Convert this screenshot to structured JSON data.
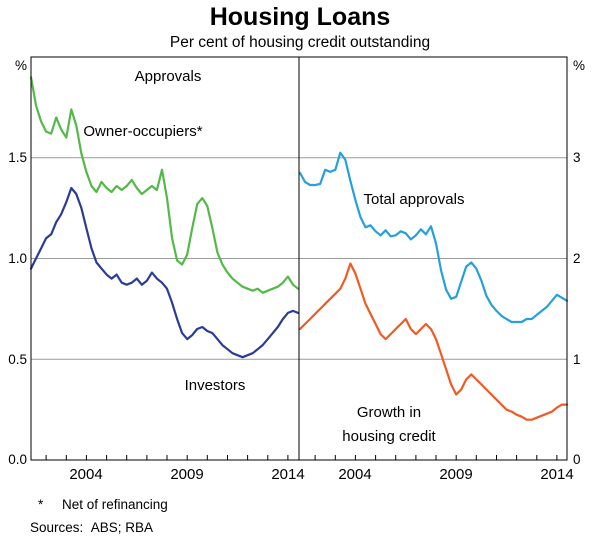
{
  "title": "Housing Loans",
  "subtitle": "Per cent of housing credit outstanding",
  "footnotes": {
    "marker": "*",
    "note": "Net of refinancing",
    "sources": "Sources:  ABS; RBA"
  },
  "chart_data": {
    "type": "line",
    "title": "Housing Loans",
    "subtitle": "Per cent of housing credit outstanding",
    "x_range": [
      2001.25,
      2014.5
    ],
    "x_ticks": [
      2004,
      2009,
      2014
    ],
    "x_tick_labels": [
      "2004",
      "2009",
      "2014"
    ],
    "y_axis_left": {
      "unit": "%",
      "min": 0,
      "max": 2,
      "tick_step": 0.5,
      "applies_to": "left panel (Approvals)"
    },
    "y_axis_right": {
      "unit": "%",
      "min": 0,
      "max": 4,
      "tick_step": 1,
      "applies_to": "right panel"
    },
    "gridlines_left": [
      0.5,
      1.0,
      1.5
    ],
    "left_axis_labels": [
      "%",
      "1.5",
      "1.0",
      "0.5",
      "0.0"
    ],
    "right_axis_labels": [
      "%",
      "3",
      "2",
      "1",
      "0"
    ],
    "x": [
      2001.25,
      2001.5,
      2001.75,
      2002,
      2002.25,
      2002.5,
      2002.75,
      2003,
      2003.25,
      2003.5,
      2003.75,
      2004,
      2004.25,
      2004.5,
      2004.75,
      2005,
      2005.25,
      2005.5,
      2005.75,
      2006,
      2006.25,
      2006.5,
      2006.75,
      2007,
      2007.25,
      2007.5,
      2007.75,
      2008,
      2008.25,
      2008.5,
      2008.75,
      2009,
      2009.25,
      2009.5,
      2009.75,
      2010,
      2010.25,
      2010.5,
      2010.75,
      2011,
      2011.25,
      2011.5,
      2011.75,
      2012,
      2012.25,
      2012.5,
      2012.75,
      2013,
      2013.25,
      2013.5,
      2013.75,
      2014,
      2014.25,
      2014.5
    ],
    "series": [
      {
        "name": "Owner-occupiers*",
        "panel": "left",
        "color": "#54b948",
        "values": [
          1.9,
          1.76,
          1.68,
          1.63,
          1.62,
          1.7,
          1.64,
          1.6,
          1.74,
          1.66,
          1.52,
          1.43,
          1.36,
          1.33,
          1.38,
          1.35,
          1.33,
          1.36,
          1.34,
          1.36,
          1.39,
          1.35,
          1.32,
          1.34,
          1.36,
          1.34,
          1.44,
          1.3,
          1.1,
          0.99,
          0.97,
          1.02,
          1.15,
          1.27,
          1.3,
          1.26,
          1.15,
          1.03,
          0.97,
          0.93,
          0.9,
          0.88,
          0.86,
          0.85,
          0.84,
          0.85,
          0.83,
          0.84,
          0.85,
          0.86,
          0.88,
          0.91,
          0.87,
          0.85
        ]
      },
      {
        "name": "Investors",
        "panel": "left",
        "color": "#2b3c96",
        "values": [
          0.95,
          1.0,
          1.05,
          1.1,
          1.12,
          1.18,
          1.22,
          1.28,
          1.35,
          1.32,
          1.25,
          1.15,
          1.05,
          0.98,
          0.95,
          0.92,
          0.9,
          0.92,
          0.88,
          0.87,
          0.88,
          0.9,
          0.87,
          0.89,
          0.93,
          0.9,
          0.88,
          0.85,
          0.78,
          0.7,
          0.63,
          0.6,
          0.62,
          0.65,
          0.66,
          0.64,
          0.63,
          0.6,
          0.57,
          0.55,
          0.53,
          0.52,
          0.51,
          0.52,
          0.53,
          0.55,
          0.57,
          0.6,
          0.63,
          0.66,
          0.7,
          0.73,
          0.74,
          0.73
        ]
      },
      {
        "name": "Total approvals",
        "panel": "right",
        "color": "#25a0dc",
        "values": [
          2.85,
          2.76,
          2.73,
          2.73,
          2.74,
          2.88,
          2.86,
          2.88,
          3.05,
          2.98,
          2.77,
          2.58,
          2.41,
          2.31,
          2.33,
          2.27,
          2.23,
          2.28,
          2.22,
          2.23,
          2.27,
          2.25,
          2.19,
          2.23,
          2.29,
          2.24,
          2.32,
          2.15,
          1.88,
          1.69,
          1.6,
          1.62,
          1.77,
          1.92,
          1.96,
          1.9,
          1.78,
          1.63,
          1.54,
          1.48,
          1.43,
          1.4,
          1.37,
          1.37,
          1.37,
          1.4,
          1.4,
          1.44,
          1.48,
          1.52,
          1.58,
          1.64,
          1.61,
          1.58
        ]
      },
      {
        "name": "Growth in housing credit",
        "panel": "right",
        "color": "#f15a22",
        "values": [
          1.3,
          1.35,
          1.4,
          1.45,
          1.5,
          1.55,
          1.6,
          1.65,
          1.7,
          1.8,
          1.95,
          1.85,
          1.7,
          1.55,
          1.45,
          1.35,
          1.25,
          1.2,
          1.25,
          1.3,
          1.35,
          1.4,
          1.3,
          1.25,
          1.3,
          1.35,
          1.3,
          1.2,
          1.05,
          0.9,
          0.75,
          0.65,
          0.7,
          0.8,
          0.85,
          0.8,
          0.75,
          0.7,
          0.65,
          0.6,
          0.55,
          0.5,
          0.48,
          0.45,
          0.43,
          0.4,
          0.4,
          0.42,
          0.44,
          0.46,
          0.48,
          0.52,
          0.55,
          0.55
        ]
      }
    ],
    "annotations": [
      {
        "text": "Approvals",
        "color": "#000000"
      },
      {
        "text": "Owner-occupiers*",
        "color": "#54b948"
      },
      {
        "text": "Investors",
        "color": "#2b3c96"
      },
      {
        "text": "Total approvals",
        "color": "#25a0dc"
      },
      {
        "text": "Growth in",
        "color": "#f15a22"
      },
      {
        "text": "housing credit",
        "color": "#f15a22"
      }
    ],
    "legend_position": "inline-labels",
    "grid": true
  }
}
